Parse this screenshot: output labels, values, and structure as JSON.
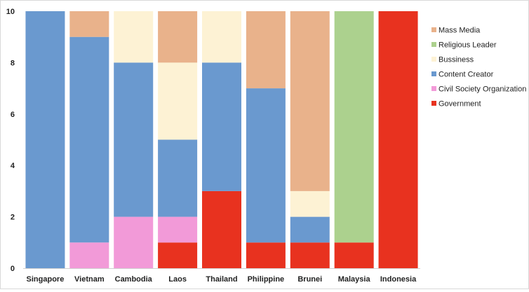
{
  "chart_data": {
    "type": "bar",
    "stacked": true,
    "title": "",
    "xlabel": "",
    "ylabel": "",
    "ylim": [
      0,
      10
    ],
    "yticks": [
      0,
      2,
      4,
      6,
      8,
      10
    ],
    "grid": false,
    "legend_position": "right",
    "categories": [
      "Singapore",
      "Vietnam",
      "Cambodia",
      "Laos",
      "Thailand",
      "Philippine",
      "Brunei",
      "Malaysia",
      "Indonesia"
    ],
    "series": [
      {
        "name": "Government",
        "color": "#e8321f",
        "values": [
          0,
          0,
          0,
          1,
          3,
          1,
          1,
          1,
          10
        ]
      },
      {
        "name": "Civil Society Organization",
        "color": "#f29ad8",
        "values": [
          0,
          1,
          2,
          1,
          0,
          0,
          0,
          0,
          0
        ]
      },
      {
        "name": "Content Creator",
        "color": "#6a99cf",
        "values": [
          10,
          8,
          6,
          3,
          5,
          6,
          1,
          0,
          0
        ]
      },
      {
        "name": "Bussiness",
        "color": "#fdf2d4",
        "values": [
          0,
          0,
          2,
          3,
          2,
          0,
          1,
          0,
          0
        ]
      },
      {
        "name": "Religious Leader",
        "color": "#acd18e",
        "values": [
          0,
          0,
          0,
          0,
          0,
          0,
          0,
          9,
          0
        ]
      },
      {
        "name": "Mass Media",
        "color": "#e9b28b",
        "values": [
          0,
          1,
          0,
          2,
          0,
          3,
          7,
          0,
          0
        ]
      }
    ],
    "legend_order": [
      "Mass Media",
      "Religious Leader",
      "Bussiness",
      "Content Creator",
      "Civil Society Organization",
      "Government"
    ]
  }
}
